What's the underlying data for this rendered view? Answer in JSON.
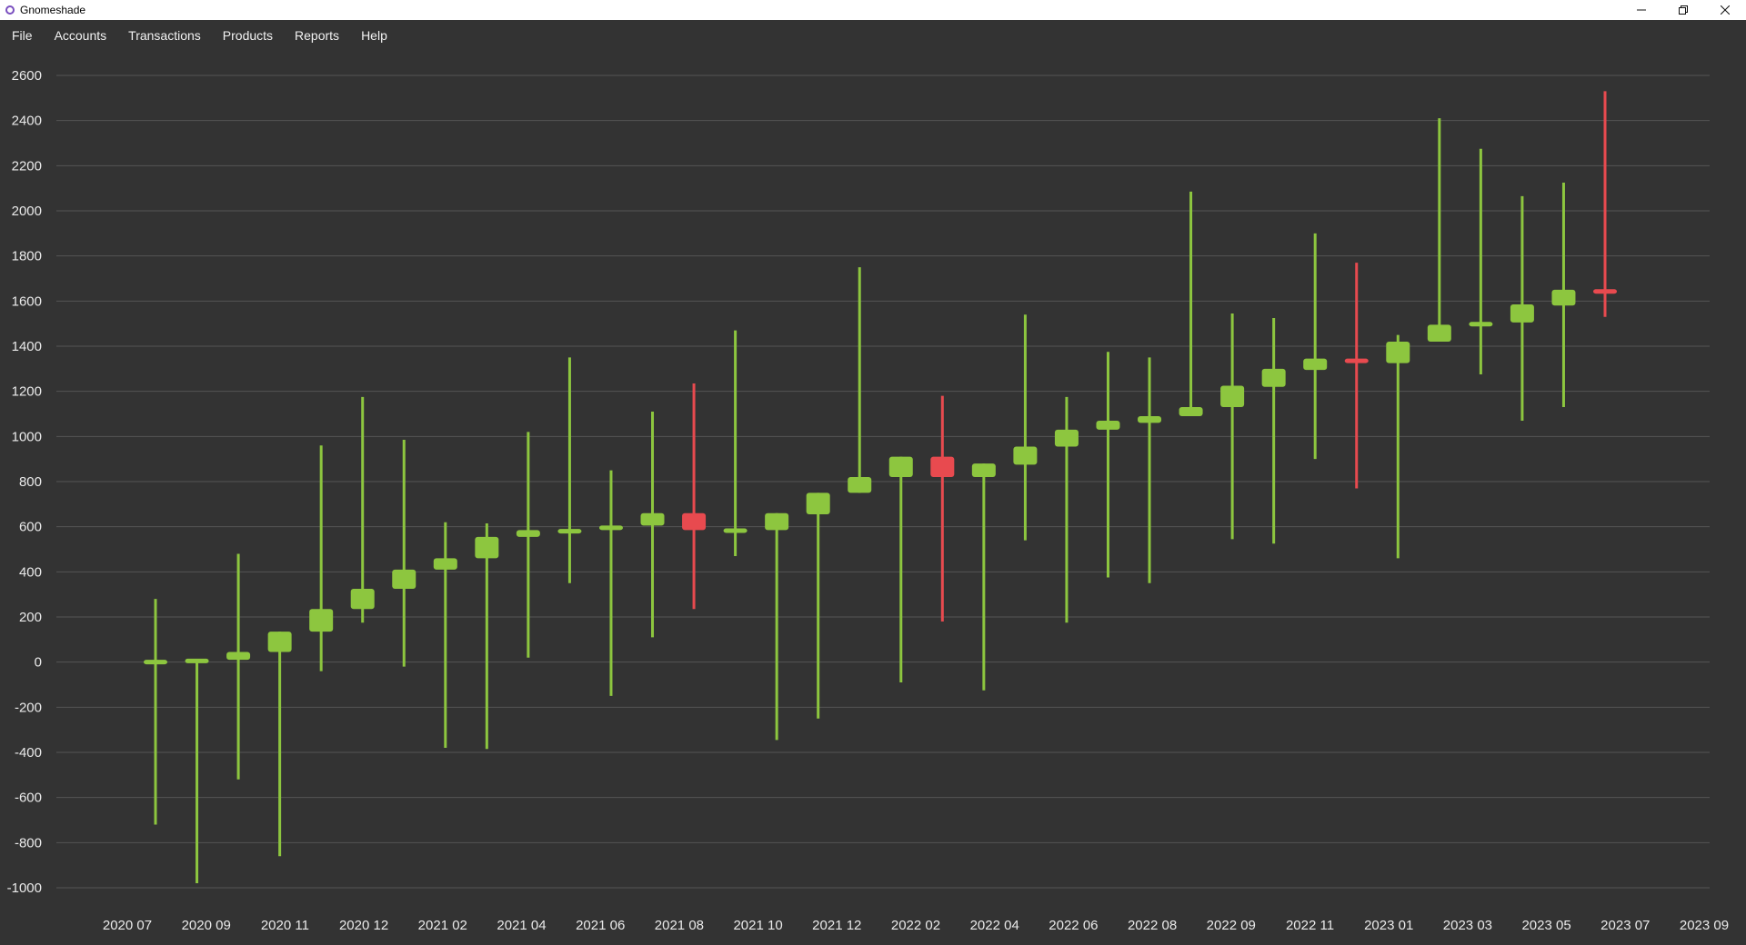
{
  "window": {
    "title": "Gnomeshade",
    "minimize_icon": "minimize-icon",
    "restore_icon": "restore-icon",
    "close_icon": "close-icon"
  },
  "menu": {
    "items": [
      "File",
      "Accounts",
      "Transactions",
      "Products",
      "Reports",
      "Help"
    ]
  },
  "colors": {
    "background": "#333333",
    "grid": "#555555",
    "up": "#8dc63f",
    "down": "#e84a4f"
  },
  "chart_data": {
    "type": "candlestick",
    "title": "",
    "xlabel": "",
    "ylabel": "",
    "ylim": [
      -1000,
      2600
    ],
    "y_ticks": [
      2600,
      2400,
      2200,
      2000,
      1800,
      1600,
      1400,
      1200,
      1000,
      800,
      600,
      400,
      200,
      0,
      -200,
      -400,
      -600,
      -800,
      -1000
    ],
    "x_ticks": [
      "2020 07",
      "2020 09",
      "2020 11",
      "2020 12",
      "2021 02",
      "2021 04",
      "2021 06",
      "2021 08",
      "2021 10",
      "2021 12",
      "2022 02",
      "2022 04",
      "2022 06",
      "2022 08",
      "2022 09",
      "2022 11",
      "2023 01",
      "2023 03",
      "2023 05",
      "2023 07",
      "2023 09"
    ],
    "grid": true,
    "candles": [
      {
        "open": 0,
        "close": 0,
        "high": 280,
        "low": -720
      },
      {
        "open": 0,
        "close": 10,
        "high": 10,
        "low": -980
      },
      {
        "open": 10,
        "close": 45,
        "high": 480,
        "low": -520
      },
      {
        "open": 45,
        "close": 135,
        "high": 135,
        "low": -860
      },
      {
        "open": 135,
        "close": 235,
        "high": 960,
        "low": -40
      },
      {
        "open": 235,
        "close": 325,
        "high": 1175,
        "low": 175
      },
      {
        "open": 325,
        "close": 410,
        "high": 985,
        "low": -20
      },
      {
        "open": 410,
        "close": 460,
        "high": 620,
        "low": -380
      },
      {
        "open": 460,
        "close": 555,
        "high": 615,
        "low": -385
      },
      {
        "open": 555,
        "close": 585,
        "high": 1020,
        "low": 20
      },
      {
        "open": 575,
        "close": 585,
        "high": 1350,
        "low": 350
      },
      {
        "open": 585,
        "close": 605,
        "high": 850,
        "low": -150
      },
      {
        "open": 605,
        "close": 660,
        "high": 1110,
        "low": 110
      },
      {
        "open": 660,
        "close": 585,
        "high": 1235,
        "low": 235
      },
      {
        "open": 580,
        "close": 585,
        "high": 1470,
        "low": 470
      },
      {
        "open": 585,
        "close": 660,
        "high": 660,
        "low": -345
      },
      {
        "open": 655,
        "close": 750,
        "high": 750,
        "low": -250
      },
      {
        "open": 750,
        "close": 820,
        "high": 1750,
        "low": 750
      },
      {
        "open": 820,
        "close": 910,
        "high": 910,
        "low": -90
      },
      {
        "open": 910,
        "close": 820,
        "high": 1180,
        "low": 180
      },
      {
        "open": 820,
        "close": 880,
        "high": 880,
        "low": -125
      },
      {
        "open": 875,
        "close": 955,
        "high": 1540,
        "low": 540
      },
      {
        "open": 955,
        "close": 1030,
        "high": 1175,
        "low": 175
      },
      {
        "open": 1030,
        "close": 1070,
        "high": 1375,
        "low": 375
      },
      {
        "open": 1060,
        "close": 1090,
        "high": 1350,
        "low": 350
      },
      {
        "open": 1090,
        "close": 1130,
        "high": 2085,
        "low": 1090
      },
      {
        "open": 1130,
        "close": 1225,
        "high": 1545,
        "low": 545
      },
      {
        "open": 1220,
        "close": 1300,
        "high": 1525,
        "low": 525
      },
      {
        "open": 1295,
        "close": 1345,
        "high": 1900,
        "low": 900
      },
      {
        "open": 1345,
        "close": 1325,
        "high": 1770,
        "low": 770
      },
      {
        "open": 1325,
        "close": 1420,
        "high": 1450,
        "low": 460
      },
      {
        "open": 1420,
        "close": 1495,
        "high": 2410,
        "low": 1420
      },
      {
        "open": 1490,
        "close": 1505,
        "high": 2275,
        "low": 1275
      },
      {
        "open": 1505,
        "close": 1585,
        "high": 2065,
        "low": 1070
      },
      {
        "open": 1580,
        "close": 1650,
        "high": 2125,
        "low": 1130
      },
      {
        "open": 1645,
        "close": 1640,
        "high": 2530,
        "low": 1530
      }
    ]
  }
}
